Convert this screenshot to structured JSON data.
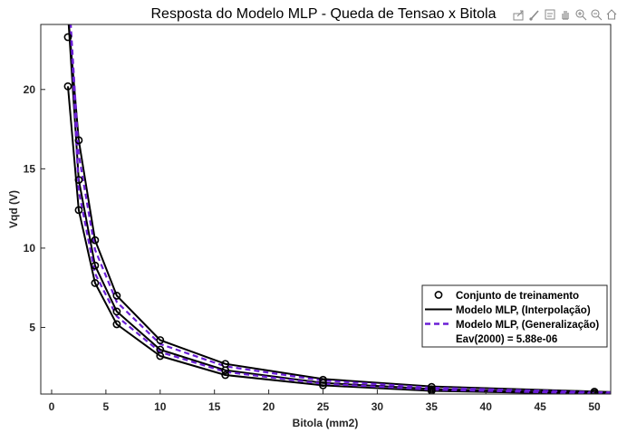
{
  "chart_data": {
    "type": "line",
    "title": "Resposta do Modelo MLP - Queda de Tensao x Bitola",
    "xlabel": "Bitola (mm2)",
    "ylabel": "Vqd (V)",
    "xlim": [
      -1,
      51.5
    ],
    "ylim": [
      0.8,
      24.1
    ],
    "xticks": [
      0,
      5,
      10,
      15,
      20,
      25,
      30,
      35,
      40,
      45,
      50
    ],
    "yticks": [
      5,
      10,
      15,
      20
    ],
    "grid": false,
    "legend_position": "bottom-right",
    "legend": [
      "Conjunto de treinamento",
      "Modelo MLP, (Interpolação)",
      "Modelo MLP, (Generalização)",
      "Eav(2000) = 5.88e-06"
    ],
    "training_points": [
      {
        "x": 1.5,
        "y": 23.3
      },
      {
        "x": 1.5,
        "y": 20.2
      },
      {
        "x": 2.5,
        "y": 16.8
      },
      {
        "x": 2.5,
        "y": 14.3
      },
      {
        "x": 2.5,
        "y": 12.4
      },
      {
        "x": 4,
        "y": 10.5
      },
      {
        "x": 4,
        "y": 8.9
      },
      {
        "x": 4,
        "y": 7.8
      },
      {
        "x": 6,
        "y": 7.0
      },
      {
        "x": 6,
        "y": 6.0
      },
      {
        "x": 6,
        "y": 5.2
      },
      {
        "x": 10,
        "y": 4.2
      },
      {
        "x": 10,
        "y": 3.6
      },
      {
        "x": 10,
        "y": 3.2
      },
      {
        "x": 16,
        "y": 2.7
      },
      {
        "x": 16,
        "y": 2.3
      },
      {
        "x": 16,
        "y": 2.0
      },
      {
        "x": 25,
        "y": 1.7
      },
      {
        "x": 25,
        "y": 1.5
      },
      {
        "x": 25,
        "y": 1.35
      },
      {
        "x": 35,
        "y": 1.25
      },
      {
        "x": 35,
        "y": 1.1
      },
      {
        "x": 35,
        "y": 1.0
      },
      {
        "x": 50,
        "y": 0.95
      },
      {
        "x": 50,
        "y": 0.85
      },
      {
        "x": 50,
        "y": 0.8
      }
    ],
    "series": [
      {
        "name": "Modelo MLP, (Interpolação)",
        "style": "solid",
        "color": "#000000",
        "x": [
          1.5,
          2.5,
          4,
          6,
          10,
          16,
          25,
          35,
          50,
          51.5
        ],
        "y": [
          24.8,
          16.8,
          10.5,
          7.0,
          4.2,
          2.7,
          1.75,
          1.28,
          0.96,
          0.93
        ]
      },
      {
        "name": "",
        "style": "solid",
        "color": "#000000",
        "x": [
          1.5,
          2.5,
          4,
          6,
          10,
          16,
          25,
          35,
          50,
          51.5
        ],
        "y": [
          24.8,
          14.3,
          8.9,
          6.0,
          3.6,
          2.3,
          1.5,
          1.12,
          0.86,
          0.84
        ]
      },
      {
        "name": "",
        "style": "solid",
        "color": "#000000",
        "x": [
          1.5,
          2.5,
          4,
          6,
          10,
          16,
          25,
          35,
          50,
          51.5
        ],
        "y": [
          20.2,
          12.4,
          7.8,
          5.2,
          3.2,
          2.0,
          1.35,
          1.0,
          0.8,
          0.79
        ]
      },
      {
        "name": "Modelo MLP, (Generalização)",
        "style": "dashed",
        "color": "#6a1fd6",
        "x": [
          1.7,
          2.5,
          4,
          6,
          10,
          16,
          25,
          35,
          50,
          51.5
        ],
        "y": [
          24.8,
          15.9,
          9.9,
          6.6,
          3.95,
          2.55,
          1.65,
          1.2,
          0.92,
          0.9
        ]
      },
      {
        "name": "",
        "style": "dashed",
        "color": "#6a1fd6",
        "x": [
          1.7,
          2.5,
          4,
          6,
          10,
          16,
          25,
          35,
          50,
          51.5
        ],
        "y": [
          24.8,
          13.6,
          8.4,
          5.7,
          3.45,
          2.2,
          1.45,
          1.08,
          0.84,
          0.82
        ]
      }
    ]
  },
  "toolbar": {
    "icons": [
      "export-icon",
      "brush-icon",
      "datatip-icon",
      "pan-icon",
      "zoom-in-icon",
      "zoom-out-icon",
      "home-icon"
    ]
  }
}
